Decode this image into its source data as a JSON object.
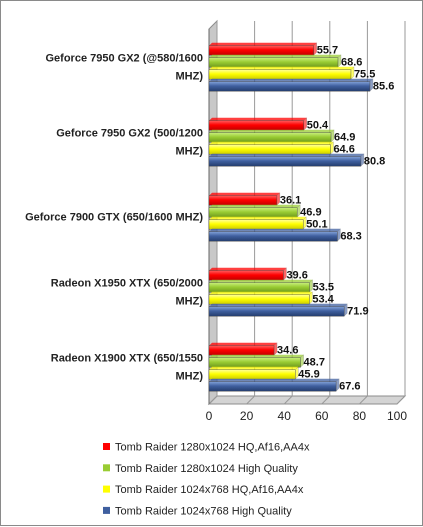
{
  "chart_data": {
    "type": "bar",
    "orientation": "horizontal",
    "title": "",
    "xlabel": "",
    "ylabel": "",
    "xlim": [
      0,
      100
    ],
    "ticks": [
      0,
      20,
      40,
      60,
      80,
      100
    ],
    "grid": true,
    "legend_position": "bottom",
    "categories": [
      [
        "Geforce 7950 GX2 (@580/1600",
        "MHZ)"
      ],
      [
        "Geforce 7950 GX2 (500/1200",
        "MHZ)"
      ],
      [
        "Geforce 7900 GTX (650/1600 MHZ)"
      ],
      [
        "Radeon X1950 XTX (650/2000",
        "MHZ)"
      ],
      [
        "Radeon X1900 XTX (650/1550",
        "MHZ)"
      ]
    ],
    "series": [
      {
        "name": "Tomb Raider 1280x1024 HQ,Af16,AA4x",
        "color": "#ff0000",
        "values": [
          55.7,
          50.4,
          36.1,
          39.6,
          34.6
        ]
      },
      {
        "name": "Tomb Raider 1280x1024 High Quality",
        "color": "#99cc33",
        "values": [
          68.6,
          64.9,
          46.9,
          53.5,
          48.7
        ]
      },
      {
        "name": "Tomb Raider 1024x768 HQ,Af16,AA4x",
        "color": "#ffff00",
        "values": [
          75.5,
          64.6,
          50.1,
          53.4,
          45.9
        ]
      },
      {
        "name": "Tomb Raider 1024x768 High Quality",
        "color": "#3f5f9f",
        "values": [
          85.6,
          80.8,
          68.3,
          71.9,
          67.6
        ]
      }
    ]
  }
}
